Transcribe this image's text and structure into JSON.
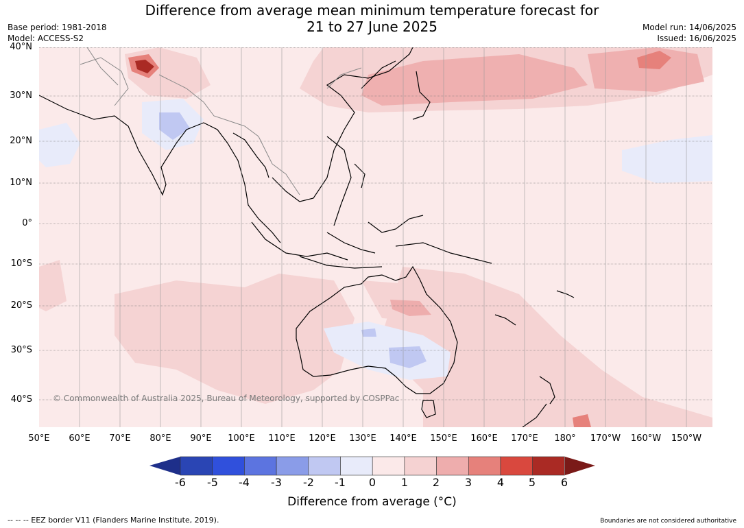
{
  "title_line1": "Difference from average mean minimum temperature forecast for",
  "title_line2": "21 to 27 June 2025",
  "base_period": "Base period: 1981-2018",
  "model": "Model: ACCESS-S2",
  "model_run": "Model run: 14/06/2025",
  "issued": "Issued: 16/06/2025",
  "lat_labels": [
    "40°N",
    "30°N",
    "20°N",
    "10°N",
    "0°",
    "10°S",
    "20°S",
    "30°S",
    "40°S"
  ],
  "lon_labels": [
    "50°E",
    "60°E",
    "70°E",
    "80°E",
    "90°E",
    "100°E",
    "110°E",
    "120°E",
    "130°E",
    "140°E",
    "150°E",
    "160°E",
    "170°E",
    "180°",
    "170°W",
    "160°W",
    "150°W"
  ],
  "copyright": "© Commonwealth of Australia 2025, Bureau of Meteorology, supported by COSPPac",
  "colorbar": {
    "ticks": [
      "-6",
      "-5",
      "-4",
      "-3",
      "-2",
      "-1",
      "0",
      "1",
      "2",
      "3",
      "4",
      "5",
      "6"
    ],
    "colors": [
      "#1e2f8a",
      "#2a45b4",
      "#3050dc",
      "#5c74e0",
      "#8a9ce8",
      "#c0c8f2",
      "#e8ebfa",
      "#fbe9e9",
      "#f5d2d2",
      "#eeadad",
      "#e6817b",
      "#d9483e",
      "#aa2a24",
      "#7a1a18"
    ],
    "label": "Difference from average (°C)"
  },
  "legend_eez": "--  --  -- EEZ border V11 (Flanders Marine Institute, 2019).",
  "boundaries_note": "Boundaries are not considered authoritative"
}
